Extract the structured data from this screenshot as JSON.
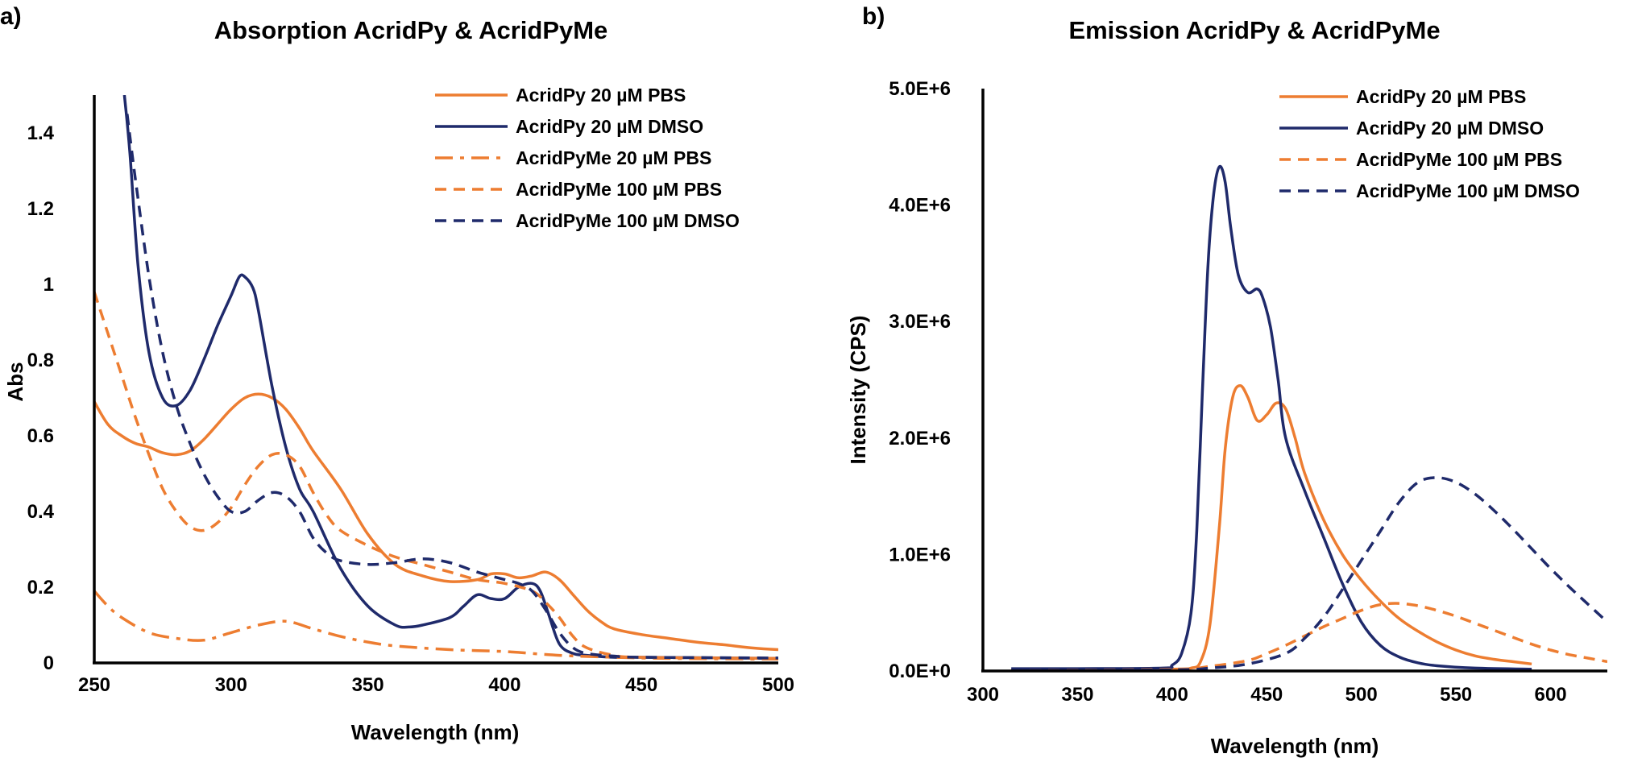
{
  "colors": {
    "orange": "#ED7D31",
    "navy": "#1F2A6B"
  },
  "panels": [
    {
      "letter": "a)"
    },
    {
      "letter": "b)"
    }
  ],
  "chart_data": [
    {
      "type": "line",
      "title": "Absorption AcridPy & AcridPyMe",
      "xlabel": "Wavelength (nm)",
      "ylabel": "Abs",
      "xlim": [
        250,
        500
      ],
      "ylim": [
        0,
        1.5
      ],
      "xticks": [
        "250",
        "300",
        "350",
        "400",
        "450",
        "500"
      ],
      "yticks": [
        "0",
        "0.2",
        "0.4",
        "0.6",
        "0.8",
        "1",
        "1.2",
        "1.4"
      ],
      "legend_position": "top-right",
      "series": [
        {
          "name": "AcridPy 20 µM PBS",
          "color": "#ED7D31",
          "style": "solid",
          "x": [
            250,
            255,
            260,
            265,
            270,
            275,
            280,
            285,
            290,
            295,
            300,
            305,
            310,
            315,
            320,
            325,
            330,
            340,
            350,
            360,
            370,
            380,
            390,
            395,
            400,
            405,
            410,
            415,
            420,
            425,
            430,
            435,
            440,
            450,
            460,
            470,
            480,
            490,
            500
          ],
          "y": [
            0.69,
            0.63,
            0.6,
            0.58,
            0.57,
            0.555,
            0.55,
            0.56,
            0.59,
            0.63,
            0.67,
            0.7,
            0.71,
            0.7,
            0.67,
            0.62,
            0.56,
            0.46,
            0.34,
            0.26,
            0.23,
            0.215,
            0.22,
            0.235,
            0.235,
            0.225,
            0.23,
            0.24,
            0.22,
            0.18,
            0.14,
            0.11,
            0.09,
            0.075,
            0.065,
            0.055,
            0.048,
            0.04,
            0.035
          ]
        },
        {
          "name": "AcridPy 20 µM DMSO",
          "color": "#1F2A6B",
          "style": "solid",
          "x": [
            261,
            263,
            266,
            270,
            275,
            280,
            285,
            290,
            295,
            300,
            303,
            305,
            308,
            310,
            315,
            320,
            325,
            330,
            340,
            350,
            360,
            365,
            370,
            380,
            385,
            390,
            395,
            400,
            405,
            410,
            413,
            416,
            420,
            425,
            430,
            440,
            450,
            500
          ],
          "y": [
            1.5,
            1.35,
            1.05,
            0.82,
            0.7,
            0.68,
            0.72,
            0.8,
            0.89,
            0.97,
            1.02,
            1.02,
            0.99,
            0.93,
            0.73,
            0.57,
            0.46,
            0.4,
            0.25,
            0.15,
            0.1,
            0.095,
            0.1,
            0.12,
            0.15,
            0.18,
            0.17,
            0.17,
            0.2,
            0.21,
            0.19,
            0.13,
            0.05,
            0.025,
            0.02,
            0.015,
            0.015,
            0.012
          ]
        },
        {
          "name": "AcridPyMe 20 µM PBS",
          "color": "#ED7D31",
          "style": "dashdot",
          "x": [
            250,
            255,
            260,
            270,
            280,
            290,
            300,
            310,
            320,
            330,
            340,
            350,
            360,
            380,
            400,
            420,
            440,
            460,
            500
          ],
          "y": [
            0.19,
            0.15,
            0.12,
            0.08,
            0.065,
            0.06,
            0.08,
            0.1,
            0.11,
            0.09,
            0.07,
            0.055,
            0.045,
            0.035,
            0.03,
            0.02,
            0.015,
            0.012,
            0.01
          ]
        },
        {
          "name": "AcridPyMe 100 µM PBS",
          "color": "#ED7D31",
          "style": "dashed",
          "x": [
            250,
            255,
            260,
            265,
            270,
            275,
            280,
            285,
            290,
            295,
            300,
            305,
            310,
            315,
            320,
            325,
            330,
            335,
            340,
            350,
            360,
            370,
            380,
            390,
            400,
            410,
            415,
            420,
            425,
            430,
            440,
            450,
            500
          ],
          "y": [
            0.98,
            0.87,
            0.76,
            0.65,
            0.55,
            0.46,
            0.4,
            0.36,
            0.35,
            0.37,
            0.41,
            0.47,
            0.52,
            0.55,
            0.55,
            0.52,
            0.45,
            0.39,
            0.35,
            0.31,
            0.28,
            0.26,
            0.24,
            0.22,
            0.21,
            0.19,
            0.16,
            0.12,
            0.07,
            0.04,
            0.02,
            0.015,
            0.012
          ]
        },
        {
          "name": "AcridPyMe 100 µM DMSO",
          "color": "#1F2A6B",
          "style": "dashed",
          "x": [
            262,
            265,
            270,
            275,
            280,
            285,
            290,
            295,
            300,
            305,
            310,
            315,
            320,
            325,
            330,
            335,
            340,
            350,
            360,
            370,
            380,
            390,
            400,
            405,
            410,
            415,
            420,
            425,
            430,
            440,
            450,
            500
          ],
          "y": [
            1.45,
            1.28,
            1.02,
            0.82,
            0.68,
            0.58,
            0.5,
            0.44,
            0.4,
            0.4,
            0.43,
            0.45,
            0.44,
            0.4,
            0.33,
            0.29,
            0.27,
            0.26,
            0.265,
            0.275,
            0.265,
            0.24,
            0.22,
            0.21,
            0.19,
            0.14,
            0.08,
            0.04,
            0.025,
            0.018,
            0.015,
            0.013
          ]
        }
      ]
    },
    {
      "type": "line",
      "title": "Emission AcridPy & AcridPyMe",
      "xlabel": "Wavelength (nm)",
      "ylabel": "Intensity (CPS)",
      "xlim": [
        300,
        630
      ],
      "ylim": [
        0,
        5000000
      ],
      "xticks": [
        "300",
        "350",
        "400",
        "450",
        "500",
        "550",
        "600"
      ],
      "yticks": [
        "0.0E+0",
        "1.0E+6",
        "2.0E+6",
        "3.0E+6",
        "4.0E+6",
        "5.0E+6"
      ],
      "legend_position": "top-right",
      "series": [
        {
          "name": "AcridPy 20 µM PBS",
          "color": "#ED7D31",
          "style": "solid",
          "x": [
            315,
            350,
            400,
            410,
            415,
            420,
            425,
            428,
            432,
            436,
            440,
            445,
            450,
            455,
            460,
            465,
            470,
            480,
            490,
            500,
            510,
            520,
            530,
            540,
            550,
            560,
            570,
            580,
            590
          ],
          "y": [
            10000,
            10000,
            15000,
            25000,
            80000,
            400000,
            1250000,
            1900000,
            2350000,
            2450000,
            2350000,
            2150000,
            2200000,
            2300000,
            2250000,
            2000000,
            1700000,
            1300000,
            1000000,
            780000,
            600000,
            450000,
            340000,
            250000,
            180000,
            130000,
            100000,
            80000,
            60000
          ]
        },
        {
          "name": "AcridPy 20 µM DMSO",
          "color": "#1F2A6B",
          "style": "solid",
          "x": [
            315,
            350,
            395,
            400,
            405,
            410,
            413,
            416,
            419,
            422,
            425,
            428,
            431,
            435,
            440,
            445,
            448,
            452,
            456,
            460,
            470,
            480,
            490,
            500,
            510,
            520,
            530,
            540,
            560,
            590
          ],
          "y": [
            20000,
            20000,
            25000,
            50000,
            150000,
            500000,
            1200000,
            2400000,
            3500000,
            4100000,
            4330000,
            4200000,
            3800000,
            3400000,
            3250000,
            3280000,
            3200000,
            2950000,
            2500000,
            2000000,
            1550000,
            1150000,
            750000,
            420000,
            220000,
            120000,
            70000,
            45000,
            25000,
            15000
          ]
        },
        {
          "name": "AcridPyMe 100 µM PBS",
          "color": "#ED7D31",
          "style": "dashed",
          "x": [
            315,
            400,
            420,
            440,
            450,
            460,
            470,
            480,
            490,
            500,
            510,
            520,
            530,
            540,
            550,
            560,
            570,
            580,
            590,
            600,
            610,
            620,
            630
          ],
          "y": [
            5000,
            15000,
            40000,
            90000,
            150000,
            220000,
            300000,
            380000,
            450000,
            520000,
            570000,
            580000,
            560000,
            520000,
            470000,
            410000,
            350000,
            290000,
            230000,
            180000,
            140000,
            110000,
            80000
          ]
        },
        {
          "name": "AcridPyMe 100 µM DMSO",
          "color": "#1F2A6B",
          "style": "dashed",
          "x": [
            315,
            400,
            420,
            440,
            460,
            470,
            480,
            490,
            500,
            510,
            520,
            530,
            540,
            550,
            560,
            570,
            580,
            590,
            600,
            610,
            620,
            630
          ],
          "y": [
            5000,
            10000,
            25000,
            60000,
            150000,
            280000,
            460000,
            700000,
            950000,
            1200000,
            1450000,
            1620000,
            1660000,
            1620000,
            1520000,
            1380000,
            1220000,
            1050000,
            880000,
            720000,
            570000,
            420000
          ]
        }
      ]
    }
  ]
}
